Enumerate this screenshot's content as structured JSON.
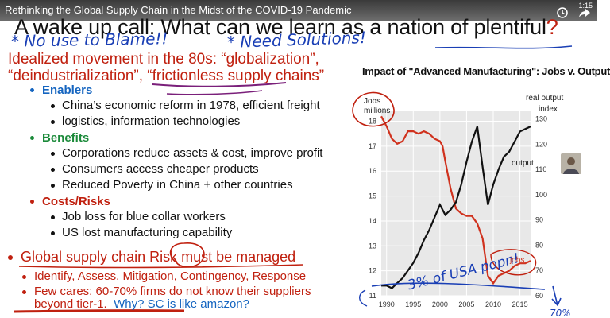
{
  "video": {
    "title": "Rethinking the Global Supply Chain in the Midst of the COVID-19 Pandemic",
    "time": "1:15"
  },
  "slide": {
    "title": "A wake up call: What can we learn as a nation of plentiful",
    "title_mark": "?",
    "hand_notes": {
      "n1": "* No use to Blame!!",
      "n2": "* Need Solutions!",
      "n3": "3% of USA popn!",
      "n4": "70%"
    },
    "intro_line1": "Idealized movement in the 80s: “globalization”,",
    "intro_line2": "“deindustrialization”, “frictionless supply chains”",
    "sections": [
      {
        "heading": "Enablers",
        "color": "#1565c0",
        "items": [
          "China’s economic reform in 1978, efficient freight",
          "logistics, information technologies"
        ]
      },
      {
        "heading": "Benefits",
        "color": "#1b8a3a",
        "items": [
          "Corporations reduce assets & cost, improve profit",
          "Consumers access cheaper products",
          "Reduced Poverty in China + other countries"
        ]
      },
      {
        "heading": "Costs/Risks",
        "color": "#c0200f",
        "items": [
          "Job loss for blue collar workers",
          "US lost manufacturing capability"
        ]
      }
    ],
    "risk_line": "Global supply chain Risk must be managed",
    "risk_subs": [
      "Identify, Assess, Mitigation, Contingency, Response",
      "Few cares: 60-70% firms do not know their suppliers"
    ],
    "risk_tail_red": "beyond tier-1.",
    "risk_tail_blue": "Why?  SC is like amazon?"
  },
  "chart_data": {
    "type": "line",
    "title": "Impact of \"Advanced Manufacturing\": Jobs v. Output",
    "left_axis_label": [
      "Jobs",
      "millions"
    ],
    "right_axis_label": [
      "real output",
      "index"
    ],
    "x_ticks": [
      "1990",
      "1995",
      "2000",
      "2005",
      "2010",
      "2015"
    ],
    "x_range": [
      1989,
      2017
    ],
    "left_ticks": [
      11,
      12,
      13,
      14,
      15,
      16,
      17,
      18
    ],
    "left_range": [
      11,
      18.4
    ],
    "right_ticks": [
      60,
      70,
      80,
      90,
      100,
      110,
      120,
      130
    ],
    "right_range": [
      60,
      133
    ],
    "series": [
      {
        "name": "jobs",
        "color": "#d0321e",
        "axis": "left",
        "points": [
          [
            1989,
            18.2
          ],
          [
            1990,
            17.8
          ],
          [
            1991,
            17.3
          ],
          [
            1992,
            17.1
          ],
          [
            1993,
            17.2
          ],
          [
            1994,
            17.6
          ],
          [
            1995,
            17.6
          ],
          [
            1996,
            17.5
          ],
          [
            1997,
            17.6
          ],
          [
            1998,
            17.5
          ],
          [
            1999,
            17.3
          ],
          [
            2000,
            17.2
          ],
          [
            2000.5,
            17.0
          ],
          [
            2001,
            16.4
          ],
          [
            2002,
            15.3
          ],
          [
            2003,
            14.5
          ],
          [
            2004,
            14.3
          ],
          [
            2005,
            14.2
          ],
          [
            2006,
            14.2
          ],
          [
            2007,
            13.9
          ],
          [
            2008,
            13.3
          ],
          [
            2009,
            11.8
          ],
          [
            2010,
            11.5
          ],
          [
            2011,
            11.8
          ],
          [
            2012,
            11.9
          ],
          [
            2013,
            12.0
          ],
          [
            2014,
            12.2
          ],
          [
            2015,
            12.3
          ],
          [
            2016,
            12.3
          ],
          [
            2017,
            12.4
          ]
        ]
      },
      {
        "name": "output",
        "color": "#111111",
        "axis": "right",
        "points": [
          [
            1989,
            64
          ],
          [
            1990,
            64
          ],
          [
            1991,
            63
          ],
          [
            1992,
            65
          ],
          [
            1993,
            67
          ],
          [
            1994,
            70
          ],
          [
            1995,
            73
          ],
          [
            1996,
            77
          ],
          [
            1997,
            82
          ],
          [
            1998,
            86
          ],
          [
            1999,
            91
          ],
          [
            2000,
            96
          ],
          [
            2001,
            92
          ],
          [
            2002,
            94
          ],
          [
            2003,
            97
          ],
          [
            2004,
            104
          ],
          [
            2005,
            113
          ],
          [
            2006,
            121
          ],
          [
            2007,
            127
          ],
          [
            2008,
            111
          ],
          [
            2009,
            96
          ],
          [
            2010,
            104
          ],
          [
            2011,
            110
          ],
          [
            2012,
            115
          ],
          [
            2013,
            117
          ],
          [
            2014,
            121
          ],
          [
            2015,
            125
          ],
          [
            2016,
            126
          ],
          [
            2017,
            127
          ]
        ]
      }
    ],
    "annotations": [
      "output",
      "jobs"
    ]
  }
}
